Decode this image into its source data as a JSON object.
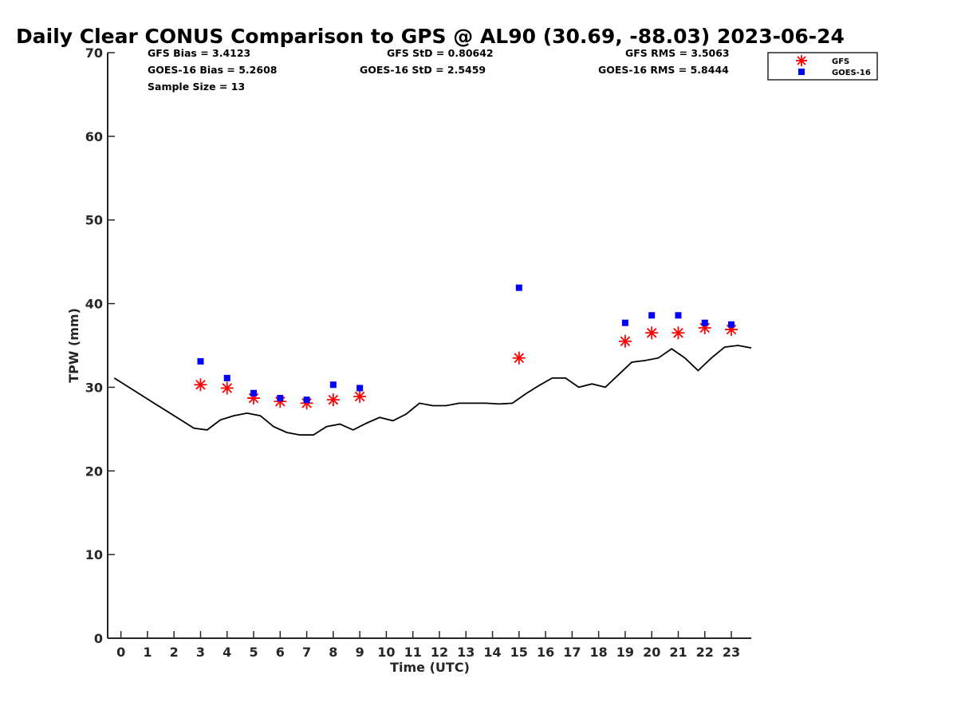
{
  "chart_data": {
    "type": "scatter",
    "title": "Daily Clear CONUS Comparison to GPS @ AL90 (30.69, -88.03) 2023-06-24",
    "xlabel": "Time (UTC)",
    "ylabel": "TPW (mm)",
    "xlim": [
      -0.5,
      23.75
    ],
    "ylim": [
      0,
      70
    ],
    "xticks": [
      0,
      1,
      2,
      3,
      4,
      5,
      6,
      7,
      8,
      9,
      10,
      11,
      12,
      13,
      14,
      15,
      16,
      17,
      18,
      19,
      20,
      21,
      22,
      23
    ],
    "yticks": [
      0,
      10,
      20,
      30,
      40,
      50,
      60,
      70
    ],
    "grid": false,
    "legend": "top-right",
    "stats": {
      "gfs_bias": "GFS Bias = 3.4123",
      "goes_bias": "GOES-16 Bias = 5.2608",
      "sample_size": "Sample Size = 13",
      "gfs_std": "GFS StD = 0.80642",
      "goes_std": "GOES-16 StD = 2.5459",
      "gfs_rms": "GFS RMS = 3.5063",
      "goes_rms": "GOES-16 RMS = 5.8444"
    },
    "series": [
      {
        "name": "GFS",
        "marker": "asterisk",
        "color": "#ff0000",
        "x": [
          3,
          4,
          5,
          6,
          7,
          8,
          9,
          15,
          19,
          20,
          21,
          22,
          23
        ],
        "y": [
          30.3,
          29.9,
          28.7,
          28.3,
          28.1,
          28.5,
          28.9,
          33.5,
          35.5,
          36.5,
          36.5,
          37.1,
          36.9
        ]
      },
      {
        "name": "GOES-16",
        "marker": "square",
        "color": "#0000ff",
        "x": [
          3,
          4,
          5,
          6,
          7,
          8,
          9,
          15,
          19,
          20,
          21,
          22,
          23
        ],
        "y": [
          33.1,
          31.1,
          29.3,
          28.7,
          28.5,
          30.3,
          29.9,
          41.9,
          37.7,
          38.6,
          38.6,
          37.7,
          37.5
        ]
      },
      {
        "name": "GPS",
        "marker": "line",
        "color": "#000000",
        "x": [
          -0.25,
          0.25,
          0.75,
          1.25,
          1.75,
          2.25,
          2.75,
          3.25,
          3.75,
          4.25,
          4.75,
          5.25,
          5.75,
          6.25,
          6.75,
          7.25,
          7.75,
          8.25,
          8.75,
          9.25,
          9.75,
          10.25,
          10.75,
          11.25,
          11.75,
          12.25,
          12.75,
          13.25,
          13.75,
          14.25,
          14.75,
          15.25,
          15.75,
          16.25,
          16.75,
          17.25,
          17.75,
          18.25,
          18.75,
          19.25,
          19.75,
          20.25,
          20.75,
          21.25,
          21.75,
          22.25,
          22.75,
          23.25,
          23.75
        ],
        "y": [
          31.1,
          30.1,
          29.1,
          28.1,
          27.1,
          26.1,
          25.1,
          24.9,
          26.1,
          26.6,
          26.9,
          26.6,
          25.3,
          24.6,
          24.3,
          24.3,
          25.3,
          25.6,
          24.9,
          25.7,
          26.4,
          26.0,
          26.8,
          28.1,
          27.8,
          27.8,
          28.1,
          28.1,
          28.1,
          28.0,
          28.1,
          29.2,
          30.2,
          31.1,
          31.1,
          30.0,
          30.4,
          30.0,
          31.5,
          33.0,
          33.2,
          33.5,
          34.6,
          33.5,
          32.0,
          33.5,
          34.8,
          35.0,
          34.7
        ]
      }
    ]
  }
}
